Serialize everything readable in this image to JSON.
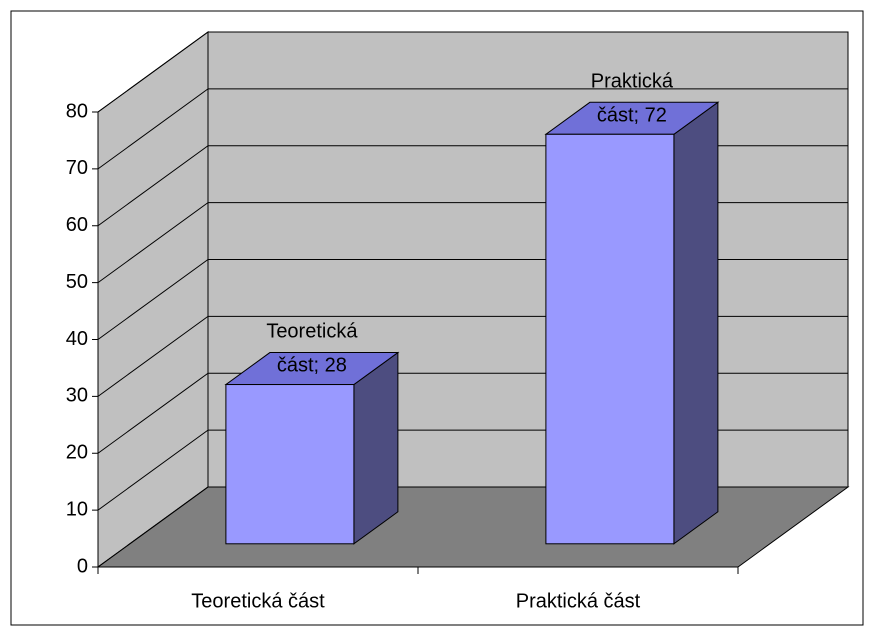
{
  "chart_data": {
    "type": "bar",
    "categories": [
      "Teoretická část",
      "Praktická část"
    ],
    "values": [
      28,
      72
    ],
    "value_labels": [
      "Teoretická část; 28",
      "Praktická část; 72"
    ],
    "color": "#9999ff",
    "ylim": [
      0,
      80
    ],
    "yticks": [
      0,
      10,
      20,
      30,
      40,
      50,
      60,
      70,
      80
    ],
    "grid": true
  }
}
